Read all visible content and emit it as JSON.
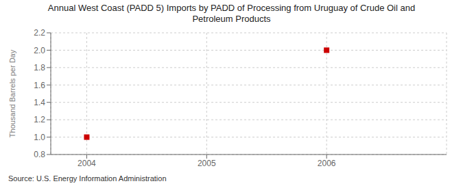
{
  "chart_data": {
    "type": "scatter",
    "title": "Annual West Coast (PADD 5) Imports by PADD of Processing from Uruguay of Crude Oil and\nPetroleum Products",
    "ylabel": "Thousand Barrels per Day",
    "annotations": [
      "Source: U.S. Energy Information Administration"
    ],
    "x": [
      2004,
      2006
    ],
    "values": [
      1.0,
      2.0
    ],
    "color": "#CC0000",
    "marker": "square",
    "xlim": [
      2003.7,
      2007.0
    ],
    "xticks": [
      2004,
      2005,
      2006
    ],
    "ylim": [
      0.8,
      2.2
    ],
    "yticks": [
      0.8,
      {
        "value": 1.0,
        "label": "1.0"
      },
      1.2,
      1.4,
      1.6,
      1.8,
      {
        "value": 2.0,
        "label": "2.0"
      },
      2.2
    ],
    "grid": true
  }
}
